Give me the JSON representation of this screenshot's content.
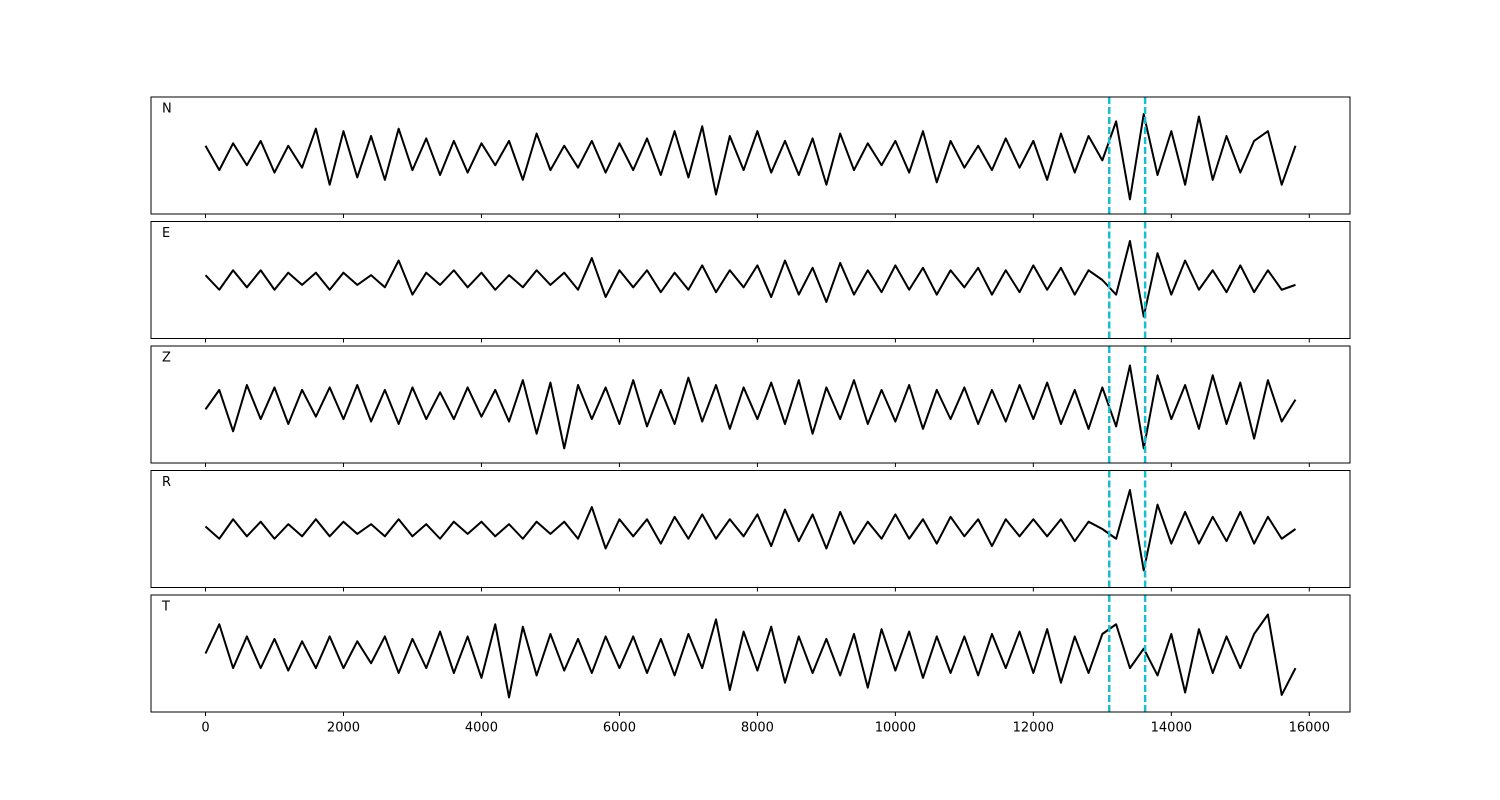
{
  "chart_data": [
    {
      "type": "line",
      "label": "N",
      "color": "#000000",
      "vline_color": "#17becf",
      "x": [
        0,
        200,
        400,
        600,
        800,
        1000,
        1200,
        1400,
        1600,
        1800,
        2000,
        2200,
        2400,
        2600,
        2800,
        3000,
        3200,
        3400,
        3600,
        3800,
        4000,
        4200,
        4400,
        4600,
        4800,
        5000,
        5200,
        5400,
        5600,
        5800,
        6000,
        6200,
        6400,
        6600,
        6800,
        7000,
        7200,
        7400,
        7600,
        7800,
        8000,
        8200,
        8400,
        8600,
        8800,
        9000,
        9200,
        9400,
        9600,
        9800,
        10000,
        10200,
        10400,
        10600,
        10800,
        11000,
        11200,
        11400,
        11600,
        11800,
        12000,
        12200,
        12400,
        12600,
        12800,
        13000,
        13200,
        13400,
        13600,
        13800,
        14000,
        14200,
        14400,
        14600,
        14800,
        15000,
        15200,
        15400,
        15600,
        15800
      ],
      "values": [
        0.2,
        -0.3,
        0.25,
        -0.2,
        0.3,
        -0.35,
        0.2,
        -0.25,
        0.55,
        -0.6,
        0.5,
        -0.45,
        0.4,
        -0.5,
        0.55,
        -0.3,
        0.35,
        -0.4,
        0.3,
        -0.35,
        0.25,
        -0.2,
        0.3,
        -0.5,
        0.45,
        -0.3,
        0.2,
        -0.25,
        0.3,
        -0.35,
        0.25,
        -0.3,
        0.35,
        -0.4,
        0.5,
        -0.45,
        0.6,
        -0.8,
        0.4,
        -0.3,
        0.5,
        -0.35,
        0.3,
        -0.4,
        0.35,
        -0.6,
        0.45,
        -0.3,
        0.25,
        -0.2,
        0.3,
        -0.35,
        0.5,
        -0.55,
        0.3,
        -0.25,
        0.2,
        -0.3,
        0.35,
        -0.25,
        0.3,
        -0.5,
        0.45,
        -0.35,
        0.4,
        -0.1,
        0.7,
        -0.9,
        0.85,
        -0.4,
        0.5,
        -0.6,
        0.8,
        -0.5,
        0.4,
        -0.35,
        0.3,
        0.5,
        -0.6,
        0.2
      ],
      "xlim": [
        -790,
        16590
      ],
      "ylim": [
        -1.2,
        1.2
      ],
      "xticks": [
        0,
        2000,
        4000,
        6000,
        8000,
        10000,
        12000,
        14000,
        16000
      ],
      "vlines": [
        13100,
        13620
      ]
    },
    {
      "type": "line",
      "label": "E",
      "color": "#000000",
      "vline_color": "#17becf",
      "x": [
        0,
        200,
        400,
        600,
        800,
        1000,
        1200,
        1400,
        1600,
        1800,
        2000,
        2200,
        2400,
        2600,
        2800,
        3000,
        3200,
        3400,
        3600,
        3800,
        4000,
        4200,
        4400,
        4600,
        4800,
        5000,
        5200,
        5400,
        5600,
        5800,
        6000,
        6200,
        6400,
        6600,
        6800,
        7000,
        7200,
        7400,
        7600,
        7800,
        8000,
        8200,
        8400,
        8600,
        8800,
        9000,
        9200,
        9400,
        9600,
        9800,
        10000,
        10200,
        10400,
        10600,
        10800,
        11000,
        11200,
        11400,
        11600,
        11800,
        12000,
        12200,
        12400,
        12600,
        12800,
        13000,
        13200,
        13400,
        13600,
        13800,
        14000,
        14200,
        14400,
        14600,
        14800,
        15000,
        15200,
        15400,
        15600,
        15800
      ],
      "values": [
        0.1,
        -0.2,
        0.2,
        -0.15,
        0.2,
        -0.2,
        0.15,
        -0.1,
        0.15,
        -0.2,
        0.15,
        -0.1,
        0.1,
        -0.15,
        0.4,
        -0.3,
        0.15,
        -0.1,
        0.2,
        -0.15,
        0.15,
        -0.2,
        0.1,
        -0.15,
        0.2,
        -0.1,
        0.15,
        -0.2,
        0.45,
        -0.35,
        0.2,
        -0.15,
        0.2,
        -0.25,
        0.15,
        -0.2,
        0.3,
        -0.25,
        0.2,
        -0.15,
        0.3,
        -0.35,
        0.4,
        -0.3,
        0.25,
        -0.45,
        0.35,
        -0.3,
        0.2,
        -0.25,
        0.3,
        -0.2,
        0.25,
        -0.3,
        0.2,
        -0.15,
        0.25,
        -0.3,
        0.2,
        -0.25,
        0.3,
        -0.2,
        0.25,
        -0.3,
        0.2,
        0.0,
        -0.3,
        0.8,
        -0.75,
        0.55,
        -0.3,
        0.4,
        -0.2,
        0.2,
        -0.25,
        0.3,
        -0.25,
        0.2,
        -0.2,
        -0.1
      ],
      "xlim": [
        -790,
        16590
      ],
      "ylim": [
        -1.2,
        1.2
      ],
      "xticks": [
        0,
        2000,
        4000,
        6000,
        8000,
        10000,
        12000,
        14000,
        16000
      ],
      "vlines": [
        13100,
        13620
      ]
    },
    {
      "type": "line",
      "label": "Z",
      "color": "#000000",
      "vline_color": "#17becf",
      "x": [
        0,
        200,
        400,
        600,
        800,
        1000,
        1200,
        1400,
        1600,
        1800,
        2000,
        2200,
        2400,
        2600,
        2800,
        3000,
        3200,
        3400,
        3600,
        3800,
        4000,
        4200,
        4400,
        4600,
        4800,
        5000,
        5200,
        5400,
        5600,
        5800,
        6000,
        6200,
        6400,
        6600,
        6800,
        7000,
        7200,
        7400,
        7600,
        7800,
        8000,
        8200,
        8400,
        8600,
        8800,
        9000,
        9200,
        9400,
        9600,
        9800,
        10000,
        10200,
        10400,
        10600,
        10800,
        11000,
        11200,
        11400,
        11600,
        11800,
        12000,
        12200,
        12400,
        12600,
        12800,
        13000,
        13200,
        13400,
        13600,
        13800,
        14000,
        14200,
        14400,
        14600,
        14800,
        15000,
        15200,
        15400,
        15600,
        15800
      ],
      "values": [
        -0.1,
        0.3,
        -0.55,
        0.4,
        -0.3,
        0.35,
        -0.4,
        0.3,
        -0.25,
        0.35,
        -0.3,
        0.4,
        -0.35,
        0.3,
        -0.4,
        0.35,
        -0.3,
        0.25,
        -0.3,
        0.35,
        -0.25,
        0.3,
        -0.35,
        0.5,
        -0.6,
        0.45,
        -0.9,
        0.4,
        -0.3,
        0.35,
        -0.4,
        0.5,
        -0.45,
        0.3,
        -0.4,
        0.55,
        -0.35,
        0.4,
        -0.5,
        0.35,
        -0.3,
        0.45,
        -0.4,
        0.5,
        -0.6,
        0.35,
        -0.3,
        0.5,
        -0.4,
        0.3,
        -0.35,
        0.4,
        -0.5,
        0.3,
        -0.3,
        0.35,
        -0.4,
        0.3,
        -0.35,
        0.4,
        -0.3,
        0.45,
        -0.4,
        0.3,
        -0.5,
        0.35,
        -0.45,
        0.8,
        -0.9,
        0.6,
        -0.3,
        0.4,
        -0.5,
        0.6,
        -0.4,
        0.45,
        -0.7,
        0.5,
        -0.35,
        0.1
      ],
      "xlim": [
        -790,
        16590
      ],
      "ylim": [
        -1.2,
        1.2
      ],
      "xticks": [
        0,
        2000,
        4000,
        6000,
        8000,
        10000,
        12000,
        14000,
        16000
      ],
      "vlines": [
        13100,
        13620
      ]
    },
    {
      "type": "line",
      "label": "R",
      "color": "#000000",
      "vline_color": "#17becf",
      "x": [
        0,
        200,
        400,
        600,
        800,
        1000,
        1200,
        1400,
        1600,
        1800,
        2000,
        2200,
        2400,
        2600,
        2800,
        3000,
        3200,
        3400,
        3600,
        3800,
        4000,
        4200,
        4400,
        4600,
        4800,
        5000,
        5200,
        5400,
        5600,
        5800,
        6000,
        6200,
        6400,
        6600,
        6800,
        7000,
        7200,
        7400,
        7600,
        7800,
        8000,
        8200,
        8400,
        8600,
        8800,
        9000,
        9200,
        9400,
        9600,
        9800,
        10000,
        10200,
        10400,
        10600,
        10800,
        11000,
        11200,
        11400,
        11600,
        11800,
        12000,
        12200,
        12400,
        12600,
        12800,
        13000,
        13200,
        13400,
        13600,
        13800,
        14000,
        14200,
        14400,
        14600,
        14800,
        15000,
        15200,
        15400,
        15600,
        15800
      ],
      "values": [
        0.05,
        -0.2,
        0.2,
        -0.15,
        0.15,
        -0.2,
        0.1,
        -0.15,
        0.2,
        -0.15,
        0.15,
        -0.1,
        0.1,
        -0.15,
        0.2,
        -0.15,
        0.1,
        -0.2,
        0.15,
        -0.1,
        0.15,
        -0.15,
        0.1,
        -0.2,
        0.15,
        -0.1,
        0.15,
        -0.2,
        0.45,
        -0.4,
        0.2,
        -0.15,
        0.2,
        -0.3,
        0.25,
        -0.2,
        0.3,
        -0.2,
        0.2,
        -0.15,
        0.3,
        -0.35,
        0.4,
        -0.25,
        0.3,
        -0.4,
        0.35,
        -0.3,
        0.15,
        -0.2,
        0.3,
        -0.2,
        0.2,
        -0.3,
        0.25,
        -0.15,
        0.2,
        -0.35,
        0.2,
        -0.15,
        0.2,
        -0.15,
        0.2,
        -0.25,
        0.15,
        0.0,
        -0.2,
        0.8,
        -0.85,
        0.5,
        -0.3,
        0.35,
        -0.3,
        0.25,
        -0.25,
        0.35,
        -0.3,
        0.25,
        -0.2,
        0.0
      ],
      "xlim": [
        -790,
        16590
      ],
      "ylim": [
        -1.2,
        1.2
      ],
      "xticks": [
        0,
        2000,
        4000,
        6000,
        8000,
        10000,
        12000,
        14000,
        16000
      ],
      "vlines": [
        13100,
        13620
      ]
    },
    {
      "type": "line",
      "label": "T",
      "color": "#000000",
      "vline_color": "#17becf",
      "x": [
        0,
        200,
        400,
        600,
        800,
        1000,
        1200,
        1400,
        1600,
        1800,
        2000,
        2200,
        2400,
        2600,
        2800,
        3000,
        3200,
        3400,
        3600,
        3800,
        4000,
        4200,
        4400,
        4600,
        4800,
        5000,
        5200,
        5400,
        5600,
        5800,
        6000,
        6200,
        6400,
        6600,
        6800,
        7000,
        7200,
        7400,
        7600,
        7800,
        8000,
        8200,
        8400,
        8600,
        8800,
        9000,
        9200,
        9400,
        9600,
        9800,
        10000,
        10200,
        10400,
        10600,
        10800,
        11000,
        11200,
        11400,
        11600,
        11800,
        12000,
        12200,
        12400,
        12600,
        12800,
        13000,
        13200,
        13400,
        13600,
        13800,
        14000,
        14200,
        14400,
        14600,
        14800,
        15000,
        15200,
        15400,
        15600,
        15800
      ],
      "values": [
        0.0,
        0.6,
        -0.3,
        0.35,
        -0.3,
        0.3,
        -0.35,
        0.25,
        -0.3,
        0.35,
        -0.3,
        0.25,
        -0.2,
        0.35,
        -0.4,
        0.3,
        -0.3,
        0.45,
        -0.4,
        0.35,
        -0.5,
        0.6,
        -0.9,
        0.55,
        -0.45,
        0.4,
        -0.35,
        0.3,
        -0.4,
        0.35,
        -0.3,
        0.35,
        -0.4,
        0.3,
        -0.45,
        0.4,
        -0.3,
        0.7,
        -0.75,
        0.45,
        -0.35,
        0.55,
        -0.6,
        0.35,
        -0.4,
        0.3,
        -0.45,
        0.4,
        -0.7,
        0.5,
        -0.35,
        0.45,
        -0.5,
        0.35,
        -0.4,
        0.35,
        -0.45,
        0.4,
        -0.3,
        0.45,
        -0.4,
        0.5,
        -0.6,
        0.35,
        -0.4,
        0.4,
        0.6,
        -0.3,
        0.1,
        -0.45,
        0.4,
        -0.8,
        0.5,
        -0.4,
        0.35,
        -0.3,
        0.4,
        0.8,
        -0.85,
        -0.3
      ],
      "xlim": [
        -790,
        16590
      ],
      "ylim": [
        -1.2,
        1.2
      ],
      "xticks": [
        0,
        2000,
        4000,
        6000,
        8000,
        10000,
        12000,
        14000,
        16000
      ],
      "vlines": [
        13100,
        13620
      ]
    }
  ]
}
